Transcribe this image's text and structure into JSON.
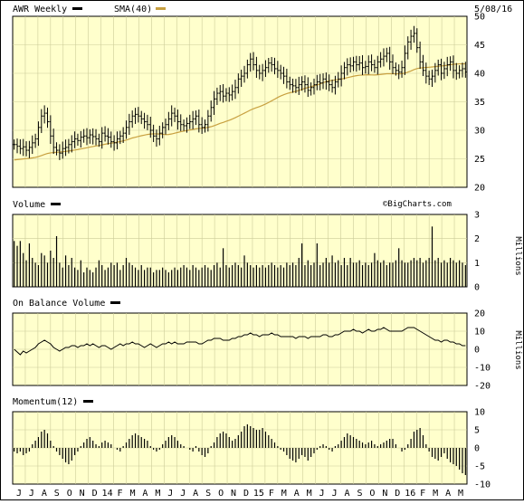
{
  "header": {
    "ticker_label": "AWR Weekly",
    "sma_label": "SMA(40)",
    "date": "5/08/16"
  },
  "colors": {
    "panel_bg": "#ffffcc",
    "grid": "#cccc99",
    "price_bar": "#000000",
    "sma": "#c8a040",
    "line": "#000000"
  },
  "x_axis": {
    "labels": [
      "J",
      "J",
      "A",
      "S",
      "O",
      "N",
      "D",
      "14",
      "F",
      "M",
      "A",
      "M",
      "J",
      "J",
      "A",
      "S",
      "O",
      "N",
      "D",
      "15",
      "F",
      "M",
      "A",
      "M",
      "J",
      "J",
      "A",
      "S",
      "O",
      "N",
      "D",
      "16",
      "F",
      "M",
      "A",
      "M"
    ]
  },
  "panels": {
    "price": {
      "yticks": [
        "50",
        "45",
        "40",
        "35",
        "30",
        "25",
        "20"
      ],
      "watermark": "©BigCharts.com"
    },
    "volume": {
      "title": "Volume",
      "yticks": [
        "3",
        "2",
        "1",
        "0"
      ],
      "unit": "Millions"
    },
    "obv": {
      "title": "On Balance Volume",
      "yticks": [
        "20",
        "10",
        "0",
        "-10",
        "-20"
      ],
      "unit": "Millions"
    },
    "momentum": {
      "title": "Momentum(12)",
      "yticks": [
        "10",
        "5",
        "0",
        "-5",
        "-10"
      ]
    }
  },
  "chart_data": [
    {
      "type": "ohlc",
      "ylim": [
        20,
        50
      ],
      "series_sma_name": "SMA(40)",
      "x_weeks": 150,
      "close": [
        27.5,
        27.2,
        26.8,
        27.1,
        26.5,
        27.0,
        27.8,
        28.5,
        30.5,
        32.5,
        33.0,
        31.5,
        29.0,
        27.0,
        26.5,
        26.0,
        26.8,
        27.0,
        27.5,
        28.0,
        28.5,
        28.2,
        28.8,
        29.0,
        28.7,
        29.2,
        28.9,
        28.5,
        28.0,
        29.5,
        29.0,
        28.8,
        28.0,
        27.8,
        28.5,
        29.0,
        29.5,
        30.5,
        31.5,
        32.5,
        32.8,
        32.5,
        32.0,
        31.5,
        31.0,
        30.0,
        29.0,
        28.5,
        29.5,
        30.5,
        31.0,
        32.0,
        33.0,
        32.5,
        31.5,
        31.0,
        30.8,
        31.2,
        31.5,
        32.0,
        32.5,
        31.0,
        30.5,
        31.0,
        32.5,
        34.0,
        35.5,
        36.5,
        36.8,
        36.0,
        36.5,
        36.2,
        36.8,
        37.5,
        39.0,
        39.5,
        40.0,
        41.5,
        42.5,
        41.5,
        40.5,
        40.0,
        40.5,
        41.0,
        41.8,
        41.5,
        40.8,
        40.5,
        40.0,
        39.5,
        38.5,
        38.0,
        37.8,
        37.5,
        38.0,
        38.5,
        38.0,
        37.0,
        37.5,
        38.0,
        38.5,
        38.3,
        39.0,
        38.5,
        38.0,
        37.5,
        38.5,
        39.0,
        40.0,
        41.0,
        41.5,
        41.3,
        42.0,
        41.5,
        41.8,
        41.0,
        41.2,
        42.0,
        41.5,
        41.0,
        42.0,
        42.5,
        43.0,
        43.5,
        42.0,
        41.0,
        40.5,
        40.2,
        41.0,
        43.5,
        45.5,
        46.5,
        47.0,
        44.5,
        42.0,
        40.5,
        39.5,
        39.0,
        39.5,
        40.5,
        41.5,
        40.0,
        40.8,
        41.5,
        42.0,
        40.5,
        40.0,
        40.5,
        40.8,
        40.2
      ]
    },
    {
      "type": "bar",
      "name": "Volume",
      "ylim": [
        0,
        3
      ],
      "values": [
        1.9,
        1.7,
        1.9,
        1.4,
        1.1,
        1.8,
        1.2,
        1.0,
        0.9,
        1.4,
        1.3,
        1.0,
        1.5,
        1.2,
        2.1,
        1.0,
        0.8,
        1.3,
        0.9,
        1.2,
        0.8,
        0.7,
        1.1,
        0.6,
        0.8,
        0.7,
        0.6,
        0.8,
        1.1,
        0.9,
        0.7,
        0.8,
        1.0,
        0.9,
        1.0,
        0.7,
        0.9,
        1.2,
        1.0,
        0.9,
        0.8,
        0.7,
        0.9,
        0.7,
        0.8,
        0.8,
        0.6,
        0.7,
        0.7,
        0.8,
        0.7,
        0.6,
        0.7,
        0.8,
        0.7,
        0.8,
        0.9,
        0.8,
        0.7,
        0.9,
        0.8,
        0.7,
        0.8,
        0.9,
        0.8,
        0.7,
        0.9,
        1.0,
        0.8,
        1.6,
        0.9,
        0.8,
        0.9,
        1.0,
        0.9,
        0.8,
        1.3,
        1.0,
        0.9,
        0.8,
        0.9,
        0.8,
        0.9,
        0.8,
        0.9,
        1.0,
        0.9,
        0.8,
        0.9,
        0.8,
        1.0,
        0.9,
        1.0,
        0.9,
        1.2,
        1.8,
        0.9,
        1.1,
        0.9,
        1.0,
        1.8,
        0.9,
        1.0,
        1.2,
        1.0,
        1.3,
        1.0,
        1.1,
        0.9,
        1.2,
        0.9,
        1.2,
        1.0,
        1.0,
        1.1,
        0.9,
        1.0,
        0.9,
        1.0,
        1.4,
        1.1,
        1.0,
        1.1,
        0.9,
        1.0,
        1.0,
        1.1,
        1.6,
        1.1,
        1.0,
        1.0,
        1.1,
        1.2,
        1.1,
        1.2,
        1.0,
        1.1,
        1.2,
        2.5,
        1.1,
        1.2,
        1.0,
        1.1,
        1.0,
        1.2,
        1.1,
        1.0,
        1.1,
        1.0,
        0.9
      ]
    },
    {
      "type": "line",
      "name": "On Balance Volume",
      "ylim": [
        -20,
        20
      ],
      "values": [
        0,
        -1.5,
        -3,
        -1,
        -2,
        -1,
        0,
        1,
        3,
        4,
        5,
        4,
        3,
        1,
        0,
        -1,
        0,
        1,
        1,
        2,
        2,
        1,
        2,
        2,
        3,
        2,
        3,
        2,
        1,
        2,
        2,
        1,
        0,
        1,
        2,
        3,
        2,
        3,
        3,
        4,
        3,
        3,
        2,
        1,
        2,
        3,
        2,
        1,
        2,
        3,
        3,
        4,
        3,
        4,
        3,
        3,
        3,
        4,
        4,
        4,
        4,
        3,
        3,
        4,
        5,
        5,
        6,
        6,
        6,
        5,
        5,
        5,
        6,
        6,
        7,
        7,
        8,
        8,
        9,
        8,
        8,
        7,
        8,
        8,
        8,
        9,
        8,
        8,
        7,
        7,
        7,
        7,
        7,
        6,
        7,
        7,
        7,
        6,
        7,
        7,
        7,
        7,
        8,
        8,
        7,
        7,
        8,
        8,
        9,
        10,
        10,
        10,
        11,
        10,
        10,
        9,
        10,
        11,
        10,
        10,
        11,
        11,
        12,
        11,
        10,
        10,
        10,
        10,
        10,
        11,
        12,
        12,
        12,
        11,
        10,
        9,
        8,
        7,
        6,
        5,
        5,
        4,
        5,
        5,
        4,
        4,
        3,
        3,
        2,
        2
      ]
    },
    {
      "type": "bar",
      "name": "Momentum(12)",
      "ylim": [
        -10,
        10
      ],
      "values": [
        -1,
        -1.5,
        -1,
        -2,
        -1.5,
        -1,
        1,
        2,
        3,
        4.5,
        5,
        4,
        2,
        0.5,
        -1,
        -2,
        -3,
        -4,
        -4.5,
        -3.5,
        -2,
        -1,
        0.5,
        1.5,
        2.5,
        3,
        2,
        1,
        0.5,
        1.5,
        2,
        1.5,
        1,
        0,
        -0.5,
        -1,
        0.5,
        1.5,
        2.5,
        3.5,
        4,
        3.5,
        3,
        2.5,
        2,
        0.5,
        -0.5,
        -1,
        -0.5,
        1,
        2,
        3,
        3.5,
        3,
        2,
        1,
        0.5,
        0,
        -0.5,
        -1,
        0.5,
        -1,
        -2,
        -2.5,
        -1.5,
        0.5,
        1.5,
        3,
        4,
        4.5,
        4,
        3,
        2,
        2.5,
        3.5,
        4.5,
        6,
        6.5,
        6,
        5.5,
        5,
        5,
        5.5,
        4.5,
        3.5,
        2.5,
        1.5,
        0.5,
        -0.5,
        -1,
        -2,
        -3,
        -3.5,
        -4,
        -3,
        -2,
        -2.5,
        -3.5,
        -2.5,
        -1.5,
        -0.5,
        0.5,
        1,
        0.5,
        -0.5,
        -1,
        0.5,
        1,
        2,
        3,
        4,
        3.5,
        3,
        2.5,
        2,
        1.5,
        1,
        1.5,
        2,
        1,
        0.5,
        1,
        1.5,
        2,
        2.5,
        2.5,
        1,
        0,
        -1,
        -0.5,
        1,
        2.5,
        4.5,
        5,
        5.5,
        3.5,
        1,
        -1,
        -2.5,
        -3,
        -3.5,
        -2.5,
        -1.5,
        -3,
        -4,
        -4.5,
        -5,
        -6,
        -7,
        -7.5
      ]
    }
  ]
}
